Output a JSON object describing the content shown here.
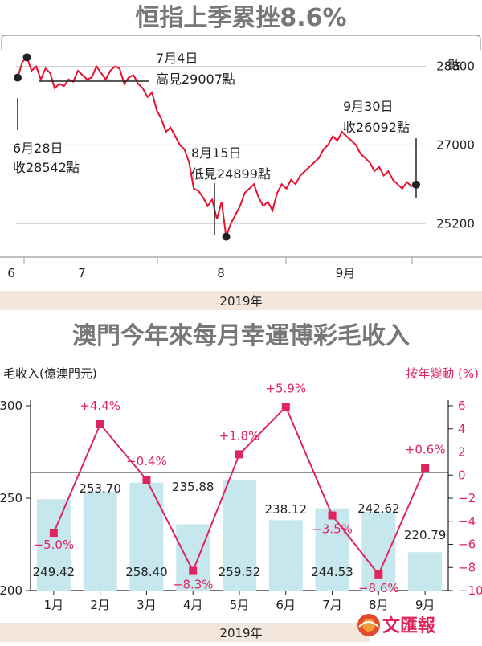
{
  "colors": {
    "accent": "#e0245e",
    "bar": "#c7e7ef",
    "band": "#f3e6dc",
    "title": "#777777"
  },
  "chart_data": [
    {
      "type": "line",
      "title": "恒指上季累挫8.6%",
      "unit": "點",
      "year_label": "2019年",
      "y_ticks": [
        "28800",
        "27000",
        "25200"
      ],
      "ylim": [
        24800,
        29400
      ],
      "x_ticks": [
        "6",
        "7",
        "8",
        "9月"
      ],
      "annotations": {
        "start": {
          "line1": "6月28日",
          "line2": "收28542點",
          "value": 28542
        },
        "high": {
          "line1": "7月4日",
          "line2": "高見29007點",
          "value": 29007
        },
        "low": {
          "line1": "8月15日",
          "line2": "低見24899點",
          "value": 24899
        },
        "end": {
          "line1": "9月30日",
          "line2": "收26092點",
          "value": 26092
        }
      },
      "series": [
        {
          "values": [
            28542,
            28900,
            29007,
            28700,
            28800,
            28500,
            28750,
            28650,
            28300,
            28400,
            28350,
            28500,
            28450,
            28700,
            28600,
            28500,
            28550,
            28800,
            28650,
            28500,
            28700,
            28800,
            28750,
            28400,
            28550,
            28600,
            28400,
            28300,
            28100,
            28200,
            27800,
            27600,
            27300,
            27400,
            27200,
            27000,
            26900,
            26600,
            26000,
            25950,
            25800,
            25600,
            25750,
            25300,
            25700,
            24899,
            25200,
            25400,
            25600,
            25900,
            26000,
            26100,
            25800,
            25600,
            25700,
            25500,
            25900,
            26100,
            26000,
            26200,
            26100,
            26300,
            26400,
            26500,
            26600,
            26700,
            26900,
            27000,
            27200,
            27100,
            27300,
            27200,
            27100,
            27000,
            26800,
            26700,
            26600,
            26400,
            26500,
            26300,
            26400,
            26200,
            26100,
            26000,
            26150,
            26050,
            26092
          ]
        }
      ]
    },
    {
      "type": "bar",
      "title": "澳門今年來每月幸運博彩毛收入",
      "ylabel": "毛收入(億澳門元)",
      "ylabel_right": "按年變動 (%)",
      "year_label": "2019年",
      "categories": [
        "1月",
        "2月",
        "3月",
        "4月",
        "5月",
        "6月",
        "7月",
        "8月",
        "9月"
      ],
      "ylim": [
        200,
        300
      ],
      "y_ticks": [
        "300",
        "250",
        "200"
      ],
      "ylim_right": [
        -10,
        6
      ],
      "y_ticks_right": [
        "6",
        "4",
        "2",
        "0",
        "−2",
        "−4",
        "−6",
        "−8",
        "−10"
      ],
      "series": [
        {
          "values": [
            249.42,
            253.7,
            258.4,
            235.88,
            259.52,
            238.12,
            244.53,
            242.62,
            220.79
          ],
          "labels": [
            "249.42",
            "253.70",
            "258.40",
            "235.88",
            "259.52",
            "238.12",
            "244.53",
            "242.62",
            "220.79"
          ]
        },
        {
          "name": "按年變動 (%)",
          "values": [
            -5.0,
            4.4,
            -0.4,
            -8.3,
            1.8,
            5.9,
            -3.5,
            -8.6,
            0.6
          ],
          "labels": [
            "−5.0%",
            "+4.4%",
            "−0.4%",
            "−8.3%",
            "+1.8%",
            "+5.9%",
            "−3.5%",
            "−8.6%",
            "+0.6%"
          ]
        }
      ]
    }
  ],
  "logo": {
    "text": "文匯報"
  }
}
